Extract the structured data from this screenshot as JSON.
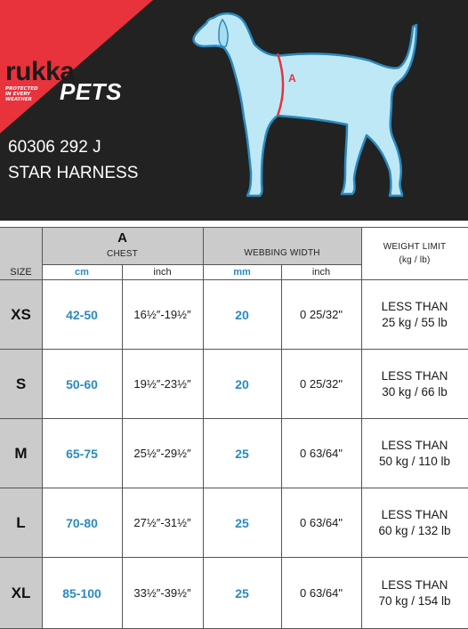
{
  "brand": {
    "logo_name": "rukka",
    "logo_sub": "PETS",
    "tagline": "PROTECTED\nIN EVERY\nWEATHER"
  },
  "product": {
    "code": "60306 292 J",
    "name": "STAR HARNESS"
  },
  "diagram": {
    "marker_label": "A"
  },
  "table": {
    "size_header": "SIZE",
    "chest_letter": "A",
    "chest_label": "CHEST",
    "webbing_label": "WEBBING WIDTH",
    "weight_label": "WEIGHT LIMIT",
    "weight_units": "(kg / lb)",
    "unit_cm": "cm",
    "unit_inch": "inch",
    "unit_mm": "mm",
    "unit_inch2": "inch",
    "rows": [
      {
        "size": "XS",
        "chest_cm": "42-50",
        "chest_inch": "16½″-19½″",
        "web_mm": "20",
        "web_inch": "0 25/32\"",
        "weight": "LESS THAN\n25 kg / 55 lb"
      },
      {
        "size": "S",
        "chest_cm": "50-60",
        "chest_inch": "19½″-23½″",
        "web_mm": "20",
        "web_inch": "0 25/32\"",
        "weight": "LESS THAN\n30 kg / 66 lb"
      },
      {
        "size": "M",
        "chest_cm": "65-75",
        "chest_inch": "25½″-29½″",
        "web_mm": "25",
        "web_inch": "0 63/64\"",
        "weight": "LESS THAN\n50 kg / 110 lb"
      },
      {
        "size": "L",
        "chest_cm": "70-80",
        "chest_inch": "27½″-31½″",
        "web_mm": "25",
        "web_inch": "0 63/64\"",
        "weight": "LESS THAN\n60 kg / 132 lb"
      },
      {
        "size": "XL",
        "chest_cm": "85-100",
        "chest_inch": "33½″-39½″",
        "web_mm": "25",
        "web_inch": "0 63/64\"",
        "weight": "LESS THAN\n70 kg / 154 lb"
      }
    ]
  },
  "colors": {
    "header_bg": "#222222",
    "brand_red": "#e8323c",
    "accent_blue": "#2a8ac0",
    "grey_fill": "#cbcbcb"
  }
}
